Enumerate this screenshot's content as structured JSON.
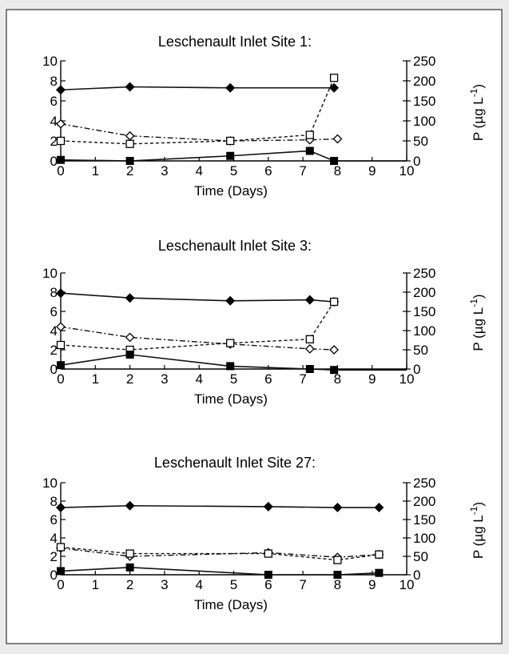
{
  "chart_data": [
    {
      "type": "line",
      "title": "Leschenault Inlet Site 1:",
      "xlabel": "Time (Days)",
      "ylabel_right": "P  (µg L",
      "ylabel_right_sup": "-1",
      "xlim": [
        0,
        10
      ],
      "ylim_left": [
        0,
        10
      ],
      "ylim_right": [
        0,
        250
      ],
      "x_ticks": [
        "0",
        "1",
        "2",
        "3",
        "4",
        "5",
        "6",
        "7",
        "8",
        "9",
        "10"
      ],
      "y_left_ticks": [
        "0",
        "2",
        "4",
        "6",
        "8",
        "10"
      ],
      "y_right_ticks": [
        "0",
        "50",
        "100",
        "150",
        "200",
        "250"
      ],
      "series": [
        {
          "marker": "filled-diamond",
          "line": "solid",
          "x": [
            0,
            2,
            4.9,
            7.9
          ],
          "y": [
            7.1,
            7.4,
            7.3,
            7.3
          ]
        },
        {
          "marker": "open-diamond",
          "line": "dash-dot",
          "x": [
            0,
            2,
            4.9,
            7.2,
            8
          ],
          "y": [
            3.7,
            2.5,
            2.0,
            2.1,
            2.2
          ]
        },
        {
          "marker": "open-square",
          "line": "dashed",
          "x": [
            0,
            2,
            4.9,
            7.2,
            7.9
          ],
          "y": [
            2.0,
            1.7,
            2.0,
            2.6,
            8.3
          ]
        },
        {
          "marker": "filled-square",
          "line": "solid",
          "x": [
            0,
            2,
            4.9,
            7.2,
            7.9,
            10
          ],
          "y": [
            0.1,
            0.0,
            0.5,
            1.0,
            0.0,
            0.0
          ]
        }
      ]
    },
    {
      "type": "line",
      "title": "Leschenault Inlet Site 3:",
      "xlabel": "Time (Days)",
      "ylabel_right": "P  (µg L",
      "ylabel_right_sup": "-1",
      "xlim": [
        0,
        10
      ],
      "ylim_left": [
        0,
        10
      ],
      "ylim_right": [
        0,
        250
      ],
      "x_ticks": [
        "0",
        "1",
        "2",
        "3",
        "4",
        "5",
        "6",
        "7",
        "8",
        "9",
        "10"
      ],
      "y_left_ticks": [
        "0",
        "2",
        "4",
        "6",
        "8",
        "10"
      ],
      "y_right_ticks": [
        "0",
        "50",
        "100",
        "150",
        "200",
        "250"
      ],
      "series": [
        {
          "marker": "filled-diamond",
          "line": "solid",
          "x": [
            0,
            2,
            4.9,
            7.2,
            7.9
          ],
          "y": [
            7.9,
            7.4,
            7.1,
            7.2,
            7.0
          ]
        },
        {
          "marker": "open-diamond",
          "line": "dash-dot",
          "x": [
            0,
            2,
            4.9,
            7.2,
            7.9
          ],
          "y": [
            4.4,
            3.3,
            2.6,
            2.1,
            2.0
          ]
        },
        {
          "marker": "open-square",
          "line": "dashed",
          "x": [
            0,
            2,
            4.9,
            7.2,
            7.9
          ],
          "y": [
            2.5,
            2.0,
            2.7,
            3.1,
            7.0
          ]
        },
        {
          "marker": "filled-square",
          "line": "solid",
          "x": [
            0,
            2,
            4.9,
            7.2,
            7.9,
            10
          ],
          "y": [
            0.4,
            1.5,
            0.3,
            0.0,
            -0.1,
            -0.1
          ]
        }
      ]
    },
    {
      "type": "line",
      "title": "Leschenault Inlet Site 27:",
      "xlabel": "Time (Days)",
      "ylabel_right": "P  (µg L",
      "ylabel_right_sup": "-1",
      "xlim": [
        0,
        10
      ],
      "ylim_left": [
        0,
        10
      ],
      "ylim_right": [
        0,
        250
      ],
      "x_ticks": [
        "0",
        "1",
        "2",
        "3",
        "4",
        "5",
        "6",
        "7",
        "8",
        "9",
        "10"
      ],
      "y_left_ticks": [
        "0",
        "2",
        "4",
        "6",
        "8",
        "10"
      ],
      "y_right_ticks": [
        "0",
        "50",
        "100",
        "150",
        "200",
        "250"
      ],
      "series": [
        {
          "marker": "filled-diamond",
          "line": "solid",
          "x": [
            0,
            2,
            6,
            8,
            9.2
          ],
          "y": [
            7.3,
            7.5,
            7.4,
            7.3,
            7.3
          ]
        },
        {
          "marker": "open-diamond",
          "line": "dash-dot",
          "x": [
            0,
            2,
            6,
            8,
            9.2
          ],
          "y": [
            2.9,
            2.0,
            2.4,
            1.9,
            2.2
          ]
        },
        {
          "marker": "open-square",
          "line": "dashed",
          "x": [
            0,
            2,
            6,
            8,
            9.2
          ],
          "y": [
            3.0,
            2.3,
            2.3,
            1.6,
            2.2
          ]
        },
        {
          "marker": "filled-square",
          "line": "solid",
          "x": [
            0,
            2,
            6,
            8,
            9.2
          ],
          "y": [
            0.4,
            0.8,
            0.0,
            0.0,
            0.2
          ]
        }
      ]
    }
  ]
}
